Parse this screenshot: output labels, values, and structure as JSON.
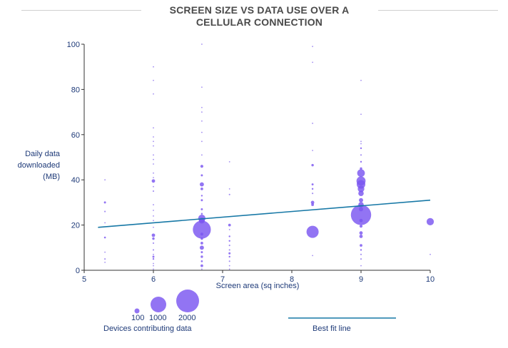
{
  "title": "SCREEN SIZE VS DATA USE OVER A CELLULAR CONNECTION",
  "colors": {
    "bubble": "#7a55f0",
    "bubble_dark": "#5630e6",
    "fit_line": "#1778a6",
    "axis_text": "#1e3a78",
    "rule": "#cfcfcf"
  },
  "legend": {
    "size_labels": [
      "100",
      "1000",
      "2000"
    ],
    "size_title": "Devices contributing data",
    "fit_label": "Best fit line"
  },
  "chart_data": {
    "type": "scatter",
    "title": "SCREEN SIZE VS DATA USE OVER A CELLULAR CONNECTION",
    "xlabel": "Screen area (sq inches)",
    "ylabel": "Daily data downloaded (MB)",
    "xlim": [
      5,
      10
    ],
    "ylim": [
      0,
      100
    ],
    "x_ticks": [
      5,
      6,
      7,
      8,
      9,
      10
    ],
    "y_ticks": [
      0,
      20,
      40,
      60,
      80,
      100
    ],
    "size_encoding": "devices contributing data",
    "fit_line": {
      "x": [
        5.2,
        10
      ],
      "y": [
        19,
        31
      ]
    },
    "points": [
      {
        "x": 5.3,
        "y": 40,
        "n": 2
      },
      {
        "x": 5.3,
        "y": 30,
        "n": 15
      },
      {
        "x": 5.3,
        "y": 26,
        "n": 8
      },
      {
        "x": 5.3,
        "y": 21,
        "n": 5
      },
      {
        "x": 5.3,
        "y": 14.5,
        "n": 12
      },
      {
        "x": 5.3,
        "y": 8,
        "n": 4
      },
      {
        "x": 5.3,
        "y": 5,
        "n": 8
      },
      {
        "x": 5.3,
        "y": 3.5,
        "n": 5
      },
      {
        "x": 6,
        "y": 90,
        "n": 2
      },
      {
        "x": 6,
        "y": 84,
        "n": 2
      },
      {
        "x": 6,
        "y": 78,
        "n": 5
      },
      {
        "x": 6,
        "y": 63,
        "n": 5
      },
      {
        "x": 6,
        "y": 59,
        "n": 3
      },
      {
        "x": 6,
        "y": 57,
        "n": 3
      },
      {
        "x": 6,
        "y": 55,
        "n": 5
      },
      {
        "x": 6,
        "y": 51,
        "n": 3
      },
      {
        "x": 6,
        "y": 49,
        "n": 5
      },
      {
        "x": 6,
        "y": 47,
        "n": 3
      },
      {
        "x": 6,
        "y": 43,
        "n": 3
      },
      {
        "x": 6,
        "y": 41,
        "n": 5
      },
      {
        "x": 6,
        "y": 39.5,
        "n": 40
      },
      {
        "x": 6,
        "y": 37,
        "n": 5
      },
      {
        "x": 6,
        "y": 35,
        "n": 8
      },
      {
        "x": 6,
        "y": 29,
        "n": 5
      },
      {
        "x": 6,
        "y": 26.5,
        "n": 5
      },
      {
        "x": 6,
        "y": 24,
        "n": 3
      },
      {
        "x": 6,
        "y": 22,
        "n": 5
      },
      {
        "x": 6,
        "y": 19,
        "n": 5
      },
      {
        "x": 6,
        "y": 15.5,
        "n": 40
      },
      {
        "x": 6,
        "y": 14,
        "n": 20
      },
      {
        "x": 6,
        "y": 12,
        "n": 8
      },
      {
        "x": 6,
        "y": 9,
        "n": 8
      },
      {
        "x": 6,
        "y": 7,
        "n": 5
      },
      {
        "x": 6,
        "y": 6,
        "n": 15
      },
      {
        "x": 6,
        "y": 5,
        "n": 10
      },
      {
        "x": 6,
        "y": 3,
        "n": 5
      },
      {
        "x": 6,
        "y": 2,
        "n": 3
      },
      {
        "x": 6,
        "y": 0.5,
        "n": 3
      },
      {
        "x": 6.7,
        "y": 100,
        "n": 2
      },
      {
        "x": 6.7,
        "y": 81,
        "n": 3
      },
      {
        "x": 6.7,
        "y": 72,
        "n": 2
      },
      {
        "x": 6.7,
        "y": 70,
        "n": 2
      },
      {
        "x": 6.7,
        "y": 66,
        "n": 2
      },
      {
        "x": 6.7,
        "y": 61,
        "n": 2
      },
      {
        "x": 6.7,
        "y": 57,
        "n": 2
      },
      {
        "x": 6.7,
        "y": 51,
        "n": 2
      },
      {
        "x": 6.7,
        "y": 46,
        "n": 30
      },
      {
        "x": 6.7,
        "y": 42,
        "n": 15
      },
      {
        "x": 6.7,
        "y": 38,
        "n": 60
      },
      {
        "x": 6.7,
        "y": 36,
        "n": 25
      },
      {
        "x": 6.7,
        "y": 33,
        "n": 10
      },
      {
        "x": 6.7,
        "y": 31,
        "n": 15
      },
      {
        "x": 6.7,
        "y": 27,
        "n": 15
      },
      {
        "x": 6.7,
        "y": 25,
        "n": 10
      },
      {
        "x": 6.7,
        "y": 23,
        "n": 180
      },
      {
        "x": 6.7,
        "y": 22,
        "n": 120
      },
      {
        "x": 6.7,
        "y": 18,
        "n": 1100
      },
      {
        "x": 6.7,
        "y": 16,
        "n": 30
      },
      {
        "x": 6.7,
        "y": 14,
        "n": 20
      },
      {
        "x": 6.7,
        "y": 12,
        "n": 25
      },
      {
        "x": 6.7,
        "y": 10,
        "n": 60
      },
      {
        "x": 6.7,
        "y": 8,
        "n": 15
      },
      {
        "x": 6.7,
        "y": 6,
        "n": 20
      },
      {
        "x": 6.7,
        "y": 4,
        "n": 12
      },
      {
        "x": 6.7,
        "y": 2,
        "n": 25
      },
      {
        "x": 6.7,
        "y": 0.5,
        "n": 5
      },
      {
        "x": 7.1,
        "y": 48,
        "n": 2
      },
      {
        "x": 7.1,
        "y": 36,
        "n": 3
      },
      {
        "x": 7.1,
        "y": 33.5,
        "n": 8
      },
      {
        "x": 7.1,
        "y": 20,
        "n": 25
      },
      {
        "x": 7.1,
        "y": 18,
        "n": 3
      },
      {
        "x": 7.1,
        "y": 15,
        "n": 10
      },
      {
        "x": 7.1,
        "y": 13,
        "n": 10
      },
      {
        "x": 7.1,
        "y": 11,
        "n": 8
      },
      {
        "x": 7.1,
        "y": 9,
        "n": 8
      },
      {
        "x": 7.1,
        "y": 7.5,
        "n": 15
      },
      {
        "x": 7.1,
        "y": 6,
        "n": 10
      },
      {
        "x": 7.1,
        "y": 4,
        "n": 8
      },
      {
        "x": 7.1,
        "y": 2,
        "n": 5
      },
      {
        "x": 7.1,
        "y": 0.5,
        "n": 3
      },
      {
        "x": 8.3,
        "y": 99,
        "n": 2
      },
      {
        "x": 8.3,
        "y": 92,
        "n": 2
      },
      {
        "x": 8.3,
        "y": 65,
        "n": 2
      },
      {
        "x": 8.3,
        "y": 53,
        "n": 3
      },
      {
        "x": 8.3,
        "y": 46.5,
        "n": 20
      },
      {
        "x": 8.3,
        "y": 38,
        "n": 15
      },
      {
        "x": 8.3,
        "y": 36,
        "n": 10
      },
      {
        "x": 8.3,
        "y": 34,
        "n": 8
      },
      {
        "x": 8.3,
        "y": 30,
        "n": 40
      },
      {
        "x": 8.3,
        "y": 29,
        "n": 25
      },
      {
        "x": 8.3,
        "y": 17,
        "n": 500
      },
      {
        "x": 8.3,
        "y": 6.5,
        "n": 3
      },
      {
        "x": 9,
        "y": 84,
        "n": 3
      },
      {
        "x": 9,
        "y": 69,
        "n": 3
      },
      {
        "x": 9,
        "y": 57,
        "n": 5
      },
      {
        "x": 9,
        "y": 56,
        "n": 5
      },
      {
        "x": 9,
        "y": 54,
        "n": 10
      },
      {
        "x": 9,
        "y": 51,
        "n": 8
      },
      {
        "x": 9,
        "y": 48,
        "n": 10
      },
      {
        "x": 9,
        "y": 45,
        "n": 20
      },
      {
        "x": 9,
        "y": 43,
        "n": 200
      },
      {
        "x": 9,
        "y": 39.5,
        "n": 280
      },
      {
        "x": 9,
        "y": 38,
        "n": 250
      },
      {
        "x": 9,
        "y": 36,
        "n": 150
      },
      {
        "x": 9,
        "y": 34,
        "n": 100
      },
      {
        "x": 9,
        "y": 31,
        "n": 60
      },
      {
        "x": 9,
        "y": 29,
        "n": 100
      },
      {
        "x": 9,
        "y": 27,
        "n": 60
      },
      {
        "x": 9,
        "y": 24.5,
        "n": 1400
      },
      {
        "x": 9,
        "y": 22,
        "n": 40
      },
      {
        "x": 9,
        "y": 19.5,
        "n": 30
      },
      {
        "x": 9,
        "y": 16.5,
        "n": 40
      },
      {
        "x": 9,
        "y": 15,
        "n": 40
      },
      {
        "x": 9,
        "y": 11,
        "n": 25
      },
      {
        "x": 9,
        "y": 9,
        "n": 10
      },
      {
        "x": 9,
        "y": 7,
        "n": 8
      },
      {
        "x": 9,
        "y": 5,
        "n": 8
      },
      {
        "x": 9,
        "y": 2,
        "n": 5
      },
      {
        "x": 10,
        "y": 21.5,
        "n": 180
      },
      {
        "x": 10,
        "y": 7,
        "n": 2
      }
    ]
  }
}
